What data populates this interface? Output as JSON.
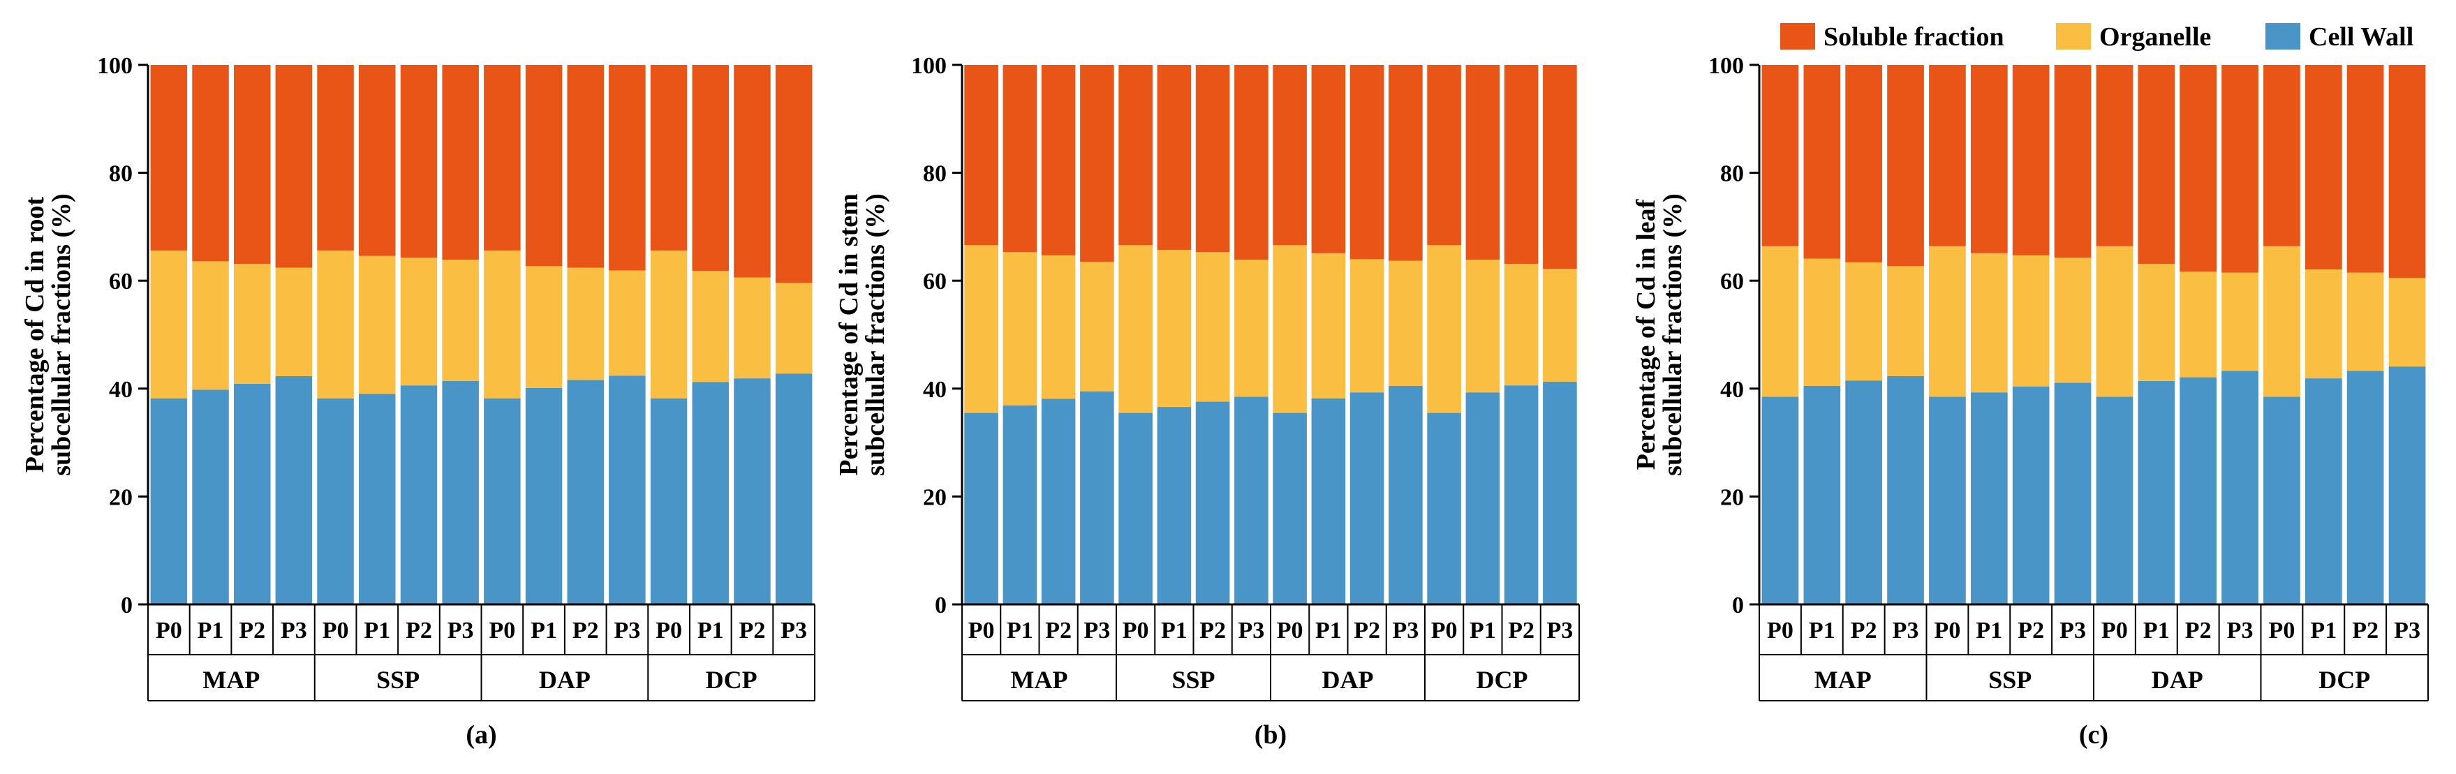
{
  "legend": {
    "items": [
      {
        "label": "Soluble fraction",
        "color": "#E95516"
      },
      {
        "label": "Organelle",
        "color": "#FABE42"
      },
      {
        "label": "Cell Wall",
        "color": "#4A95C8"
      }
    ],
    "position": "top-right"
  },
  "chart_data": [
    {
      "type": "bar",
      "stacked": true,
      "panel_label": "(a)",
      "ylabel_line1": "Percentage of Cd in root",
      "ylabel_line2": "subcellular fractions (%)",
      "ylim": [
        0,
        100
      ],
      "yticks": [
        "0",
        "20",
        "40",
        "60",
        "80",
        "100"
      ],
      "groups": [
        "MAP",
        "SSP",
        "DAP",
        "DCP"
      ],
      "categories": [
        "P0",
        "P1",
        "P2",
        "P3"
      ],
      "series": [
        {
          "name": "Cell Wall",
          "values": [
            [
              38.2,
              39.8,
              40.9,
              42.3
            ],
            [
              38.2,
              39.0,
              40.6,
              41.4
            ],
            [
              38.2,
              40.1,
              41.6,
              42.4
            ],
            [
              38.2,
              41.2,
              41.9,
              42.8
            ]
          ]
        },
        {
          "name": "Organelle",
          "values": [
            [
              27.4,
              23.8,
              22.2,
              20.1
            ],
            [
              27.4,
              25.6,
              23.7,
              22.5
            ],
            [
              27.4,
              22.6,
              20.8,
              19.5
            ],
            [
              27.4,
              20.6,
              18.7,
              16.8
            ]
          ]
        },
        {
          "name": "Soluble fraction",
          "values": [
            [
              34.4,
              36.4,
              36.9,
              37.6
            ],
            [
              34.4,
              35.4,
              35.7,
              36.1
            ],
            [
              34.4,
              37.3,
              37.6,
              38.1
            ],
            [
              34.4,
              38.2,
              39.4,
              40.4
            ]
          ]
        }
      ]
    },
    {
      "type": "bar",
      "stacked": true,
      "panel_label": "(b)",
      "ylabel_line1": "Percentage of Cd in stem",
      "ylabel_line2": "subcellular fractions (%)",
      "ylim": [
        0,
        100
      ],
      "yticks": [
        "0",
        "20",
        "40",
        "60",
        "80",
        "100"
      ],
      "groups": [
        "MAP",
        "SSP",
        "DAP",
        "DCP"
      ],
      "categories": [
        "P0",
        "P1",
        "P2",
        "P3"
      ],
      "series": [
        {
          "name": "Cell Wall",
          "values": [
            [
              35.5,
              36.9,
              38.1,
              39.5
            ],
            [
              35.5,
              36.6,
              37.6,
              38.5
            ],
            [
              35.5,
              38.2,
              39.3,
              40.5
            ],
            [
              35.5,
              39.3,
              40.6,
              41.3
            ]
          ]
        },
        {
          "name": "Organelle",
          "values": [
            [
              31.1,
              28.4,
              26.6,
              24.0
            ],
            [
              31.1,
              29.1,
              27.7,
              25.4
            ],
            [
              31.1,
              26.9,
              24.7,
              23.2
            ],
            [
              31.1,
              24.6,
              22.5,
              20.9
            ]
          ]
        },
        {
          "name": "Soluble fraction",
          "values": [
            [
              33.4,
              34.7,
              35.3,
              36.5
            ],
            [
              33.4,
              34.3,
              34.7,
              36.1
            ],
            [
              33.4,
              34.9,
              36.0,
              36.3
            ],
            [
              33.4,
              36.1,
              36.9,
              37.8
            ]
          ]
        }
      ]
    },
    {
      "type": "bar",
      "stacked": true,
      "panel_label": "(c)",
      "ylabel_line1": "Percentage of Cd in leaf",
      "ylabel_line2": "subcellular fractions (%)",
      "ylim": [
        0,
        100
      ],
      "yticks": [
        "0",
        "20",
        "40",
        "60",
        "80",
        "100"
      ],
      "groups": [
        "MAP",
        "SSP",
        "DAP",
        "DCP"
      ],
      "categories": [
        "P0",
        "P1",
        "P2",
        "P3"
      ],
      "series": [
        {
          "name": "Cell Wall",
          "values": [
            [
              38.5,
              40.5,
              41.5,
              42.3
            ],
            [
              38.5,
              39.3,
              40.4,
              41.1
            ],
            [
              38.5,
              41.4,
              42.1,
              43.3
            ],
            [
              38.5,
              41.9,
              43.3,
              44.1
            ]
          ]
        },
        {
          "name": "Organelle",
          "values": [
            [
              27.9,
              23.6,
              21.9,
              20.4
            ],
            [
              27.9,
              25.8,
              24.3,
              23.2
            ],
            [
              27.9,
              21.7,
              19.6,
              18.2
            ],
            [
              27.9,
              20.2,
              18.2,
              16.4
            ]
          ]
        },
        {
          "name": "Soluble fraction",
          "values": [
            [
              33.6,
              35.9,
              36.6,
              37.3
            ],
            [
              33.6,
              34.9,
              35.3,
              35.7
            ],
            [
              33.6,
              36.9,
              38.3,
              38.5
            ],
            [
              33.6,
              37.9,
              38.5,
              39.5
            ]
          ]
        }
      ]
    }
  ]
}
